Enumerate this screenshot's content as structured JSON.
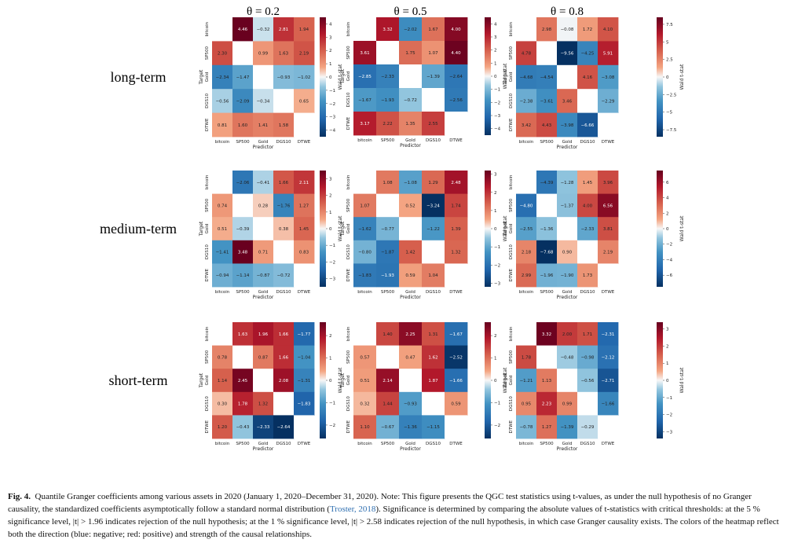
{
  "figure": {
    "column_titles": [
      "θ = 0.2",
      "θ = 0.5",
      "θ = 0.8"
    ],
    "row_titles": [
      "long-term",
      "medium-term",
      "short-term"
    ],
    "xlabel": "Predictor",
    "ylabel": "Target",
    "colorbar_label": "Wald t-stat",
    "assets": [
      "bitcoin",
      "SP500",
      "Gold",
      "DGS10",
      "DTWE"
    ]
  },
  "chart_data": [
    {
      "type": "heatmap",
      "term": "long-term",
      "theta": 0.2,
      "vlim": [
        -4.5,
        4.5
      ],
      "cbar_ticks": [
        -4,
        -3,
        -2,
        -1,
        0,
        1,
        2,
        3,
        4
      ],
      "values": [
        [
          null,
          4.46,
          -0.32,
          2.81,
          1.94
        ],
        [
          2.3,
          null,
          0.99,
          1.63,
          2.19
        ],
        [
          -2.34,
          -1.47,
          null,
          -0.93,
          -1.02
        ],
        [
          -0.56,
          -2.09,
          -0.34,
          null,
          0.65
        ],
        [
          0.81,
          1.6,
          1.41,
          1.58,
          null
        ]
      ]
    },
    {
      "type": "heatmap",
      "term": "long-term",
      "theta": 0.5,
      "vlim": [
        -4.5,
        4.5
      ],
      "cbar_ticks": [
        -4,
        -3,
        -2,
        -1,
        0,
        1,
        2,
        3,
        4
      ],
      "values": [
        [
          null,
          3.32,
          -2.02,
          1.67,
          4.0
        ],
        [
          3.61,
          null,
          1.75,
          1.07,
          4.4
        ],
        [
          -2.85,
          -2.33,
          null,
          -1.39,
          -2.64
        ],
        [
          -1.67,
          -1.93,
          -0.72,
          null,
          -2.56
        ],
        [
          3.17,
          2.22,
          1.35,
          2.55,
          null
        ]
      ]
    },
    {
      "type": "heatmap",
      "term": "long-term",
      "theta": 0.8,
      "vlim": [
        -8.5,
        8.5
      ],
      "cbar_ticks": [
        -7.5,
        -5.0,
        -2.5,
        0.0,
        2.5,
        5.0,
        7.5
      ],
      "values": [
        [
          null,
          2.98,
          -0.08,
          1.72,
          4.1
        ],
        [
          4.78,
          null,
          -9.56,
          -4.25,
          5.91
        ],
        [
          -4.68,
          -4.54,
          null,
          4.16,
          -3.08
        ],
        [
          -2.38,
          -3.61,
          3.46,
          null,
          -2.29
        ],
        [
          3.42,
          4.43,
          -3.98,
          -6.66,
          null
        ]
      ]
    },
    {
      "type": "heatmap",
      "term": "medium-term",
      "theta": 0.2,
      "vlim": [
        -3.5,
        3.5
      ],
      "cbar_ticks": [
        -3,
        -2,
        -1,
        0,
        1,
        2,
        3
      ],
      "values": [
        [
          null,
          -2.06,
          -0.41,
          1.66,
          2.11
        ],
        [
          0.74,
          null,
          0.28,
          -1.76,
          1.27
        ],
        [
          0.51,
          -0.39,
          null,
          0.38,
          1.45
        ],
        [
          -1.41,
          3.48,
          0.71,
          null,
          0.83
        ],
        [
          -0.94,
          -1.14,
          -0.87,
          -0.72,
          null
        ]
      ]
    },
    {
      "type": "heatmap",
      "term": "medium-term",
      "theta": 0.5,
      "vlim": [
        -3.2,
        3.2
      ],
      "cbar_ticks": [
        -3,
        -2,
        -1,
        0,
        1,
        2,
        3
      ],
      "values": [
        [
          null,
          1.08,
          -1.08,
          1.29,
          2.48
        ],
        [
          1.07,
          null,
          0.52,
          -3.24,
          1.74
        ],
        [
          -1.62,
          -0.77,
          null,
          -1.22,
          1.39
        ],
        [
          -0.8,
          -1.87,
          1.42,
          null,
          1.32
        ],
        [
          -1.83,
          -1.93,
          0.59,
          1.04,
          null
        ]
      ]
    },
    {
      "type": "heatmap",
      "term": "medium-term",
      "theta": 0.8,
      "vlim": [
        -7.5,
        7.5
      ],
      "cbar_ticks": [
        -6,
        -4,
        -2,
        0,
        2,
        4,
        6
      ],
      "values": [
        [
          null,
          -4.39,
          -1.28,
          1.45,
          3.96
        ],
        [
          -4.8,
          null,
          -1.37,
          4.0,
          6.56
        ],
        [
          -2.55,
          -1.36,
          null,
          -2.33,
          3.81
        ],
        [
          2.18,
          -7.68,
          0.9,
          null,
          2.19
        ],
        [
          2.99,
          -1.96,
          -1.9,
          1.73,
          null
        ]
      ]
    },
    {
      "type": "heatmap",
      "term": "short-term",
      "theta": 0.2,
      "vlim": [
        -2.6,
        2.6
      ],
      "cbar_ticks": [
        -2,
        -1,
        0,
        1,
        2
      ],
      "values": [
        [
          null,
          1.63,
          1.96,
          1.66,
          -1.77
        ],
        [
          0.78,
          null,
          0.87,
          1.66,
          -1.04
        ],
        [
          1.14,
          2.45,
          null,
          2.08,
          -1.31
        ],
        [
          0.3,
          1.78,
          1.32,
          null,
          -1.83
        ],
        [
          1.2,
          -0.43,
          -2.33,
          -2.64,
          null
        ]
      ]
    },
    {
      "type": "heatmap",
      "term": "short-term",
      "theta": 0.5,
      "vlim": [
        -2.6,
        2.6
      ],
      "cbar_ticks": [
        -2,
        -1,
        0,
        1,
        2
      ],
      "values": [
        [
          null,
          1.4,
          2.25,
          1.31,
          -1.67
        ],
        [
          0.57,
          null,
          0.47,
          1.62,
          -2.52
        ],
        [
          0.51,
          2.14,
          null,
          1.87,
          -1.66
        ],
        [
          0.32,
          1.44,
          -0.93,
          null,
          0.59
        ],
        [
          1.1,
          -0.67,
          -1.36,
          -1.15,
          null
        ]
      ]
    },
    {
      "type": "heatmap",
      "term": "short-term",
      "theta": 0.8,
      "vlim": [
        -3.4,
        3.4
      ],
      "cbar_ticks": [
        -3,
        -2,
        -1,
        0,
        1,
        2,
        3
      ],
      "values": [
        [
          null,
          3.32,
          2.0,
          1.71,
          -2.31
        ],
        [
          1.78,
          null,
          -0.48,
          -0.98,
          -2.12
        ],
        [
          -1.21,
          1.13,
          null,
          -0.56,
          -2.71
        ],
        [
          0.95,
          2.23,
          0.99,
          null,
          -1.66
        ],
        [
          -0.78,
          1.27,
          -1.39,
          -0.29,
          null
        ]
      ]
    }
  ],
  "caption": {
    "label": "Fig. 4.",
    "text_before_link": "Quantile Granger coefficients among various assets in 2020 (January 1, 2020–December 31, 2020). Note: This figure presents the QGC test statistics using t-values, as under the null hypothesis of no Granger causality, the standardized coefficients asymptotically follow a standard normal distribution (",
    "link": "Troster, 2018",
    "text_after_link": "). Significance is determined by comparing the absolute values of t-statistics with critical thresholds: at the 5 % significance level, |t| > 1.96 indicates rejection of the null hypothesis; at the 1 % significance level, |t| > 2.58 indicates rejection of the null hypothesis, in which case Granger causality exists. The colors of the heatmap reflect both the direction (blue: negative; red: positive) and strength of the causal relationships."
  }
}
